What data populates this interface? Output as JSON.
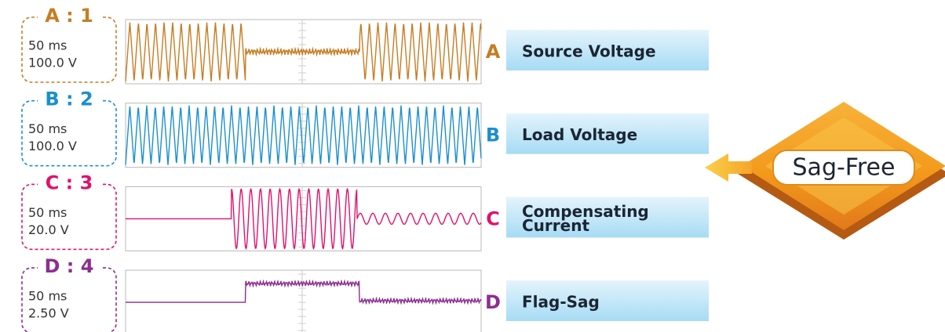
{
  "channels": [
    {
      "id": "A : 1",
      "time": "50 ms",
      "scale": "100.0 V",
      "letter": "A",
      "label": [
        "Source Voltage"
      ],
      "color": "#c67d24"
    },
    {
      "id": "B : 2",
      "time": "50 ms",
      "scale": "100.0 V",
      "letter": "B",
      "label": [
        "Load Voltage"
      ],
      "color": "#1b8fcf"
    },
    {
      "id": "C : 3",
      "time": "50 ms",
      "scale": "20.0 V",
      "letter": "C",
      "label": [
        "Compensating",
        "Current"
      ],
      "color": "#e0126c"
    },
    {
      "id": "D : 4",
      "time": "50 ms",
      "scale": "2.50 V",
      "letter": "D",
      "label": [
        "Flag-Sag"
      ],
      "color": "#8c2e90"
    }
  ],
  "badge": "Sag-Free"
}
